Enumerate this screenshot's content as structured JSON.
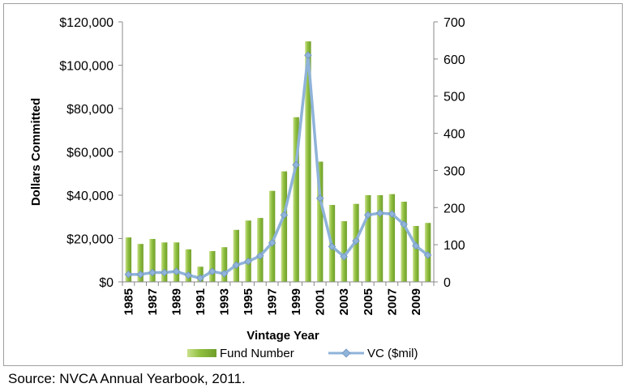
{
  "chart_data": {
    "type": "bar",
    "title": "",
    "xlabel": "Vintage Year",
    "ylabel": "Dollars Committed",
    "categories": [
      "1985",
      "1986",
      "1987",
      "1988",
      "1989",
      "1990",
      "1991",
      "1992",
      "1993",
      "1994",
      "1995",
      "1996",
      "1997",
      "1998",
      "1999",
      "2000",
      "2001",
      "2002",
      "2003",
      "2004",
      "2005",
      "2006",
      "2007",
      "2008",
      "2009",
      "2010"
    ],
    "x_tick_labels": [
      "1985",
      "1987",
      "1989",
      "1991",
      "1993",
      "1995",
      "1997",
      "1999",
      "2001",
      "2003",
      "2005",
      "2007",
      "2009"
    ],
    "ylim_left": [
      0,
      120000
    ],
    "y_left_ticks": [
      0,
      20000,
      40000,
      60000,
      80000,
      100000,
      120000
    ],
    "y_left_tick_labels": [
      "$0",
      "$20,000",
      "$40,000",
      "$60,000",
      "$80,000",
      "$100,000",
      "$120,000"
    ],
    "ylim_right": [
      0,
      700
    ],
    "y_right_ticks": [
      0,
      100,
      200,
      300,
      400,
      500,
      600,
      700
    ],
    "y_right_tick_labels": [
      "0",
      "100",
      "200",
      "300",
      "400",
      "500",
      "600",
      "700"
    ],
    "series": [
      {
        "name": "Fund Number",
        "type": "bar",
        "axis": "left",
        "color": "#8fbf3f",
        "values": [
          20500,
          17500,
          19800,
          18200,
          18200,
          15000,
          7000,
          14200,
          16000,
          24000,
          28300,
          29500,
          42000,
          51000,
          76000,
          111000,
          55500,
          35500,
          28000,
          36000,
          40000,
          40000,
          40500,
          37000,
          25800,
          27200
        ]
      },
      {
        "name": "VC ($mil)",
        "type": "line",
        "axis": "right",
        "color": "#8fb3d9",
        "values": [
          20,
          20,
          25,
          25,
          28,
          18,
          10,
          28,
          22,
          45,
          55,
          70,
          105,
          180,
          315,
          610,
          225,
          95,
          68,
          110,
          180,
          185,
          183,
          155,
          97,
          72
        ]
      }
    ],
    "legend_position": "bottom"
  },
  "source": "Source: NVCA Annual Yearbook, 2011."
}
